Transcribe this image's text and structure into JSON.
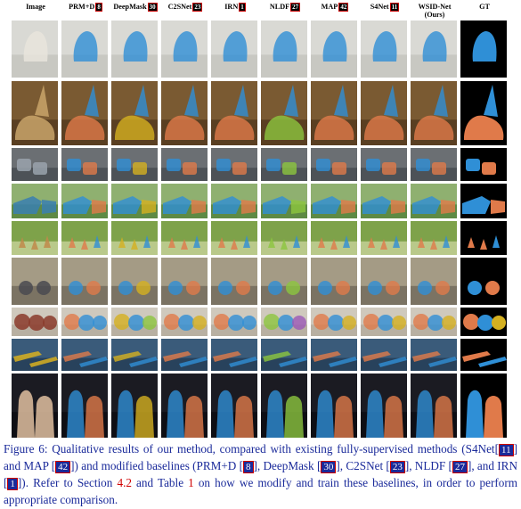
{
  "columns": [
    {
      "name": "Image",
      "ref": ""
    },
    {
      "name": "PRM+D",
      "ref": "8"
    },
    {
      "name": "DeepMask",
      "ref": "30"
    },
    {
      "name": "C2SNet",
      "ref": "23"
    },
    {
      "name": "IRN",
      "ref": "1"
    },
    {
      "name": "NLDF",
      "ref": "27"
    },
    {
      "name": "MAP",
      "ref": "42"
    },
    {
      "name": "S4Net",
      "ref": "11"
    },
    {
      "name": "WSID-Net",
      "ref": "",
      "sub": "(Ours)"
    },
    {
      "name": "GT",
      "ref": ""
    }
  ],
  "rows": [
    {
      "scene": "puppy"
    },
    {
      "scene": "cat-hat"
    },
    {
      "scene": "cars"
    },
    {
      "scene": "tractor"
    },
    {
      "scene": "deer"
    },
    {
      "scene": "bikes"
    },
    {
      "scene": "bags"
    },
    {
      "scene": "kayaks"
    },
    {
      "scene": "people"
    }
  ],
  "colors": {
    "blue": "#2f8fd6",
    "orange": "#e07a4a",
    "yellow": "#d4b020",
    "green": "#8cc63f",
    "purple": "#9b59b6",
    "gt_bg": "#000000"
  },
  "caption": {
    "figure_label": "Figure 6:",
    "text_1": "Qualitative results of our method, compared with existing fully-supervised methods (S4Net[",
    "ref_s4net": "11",
    "text_2": "] and MAP [",
    "ref_map": "42",
    "text_3": "]) and modified baselines (PRM+D [",
    "ref_prmd": "8",
    "text_4": "], DeepMask [",
    "ref_deepmask": "30",
    "text_5": "], C2SNet [",
    "ref_c2snet": "23",
    "text_6": "], NLDF [",
    "ref_nldf": "27",
    "text_7": "], and IRN [",
    "ref_irn": "1",
    "text_8": "]). Refer to Section ",
    "section": "4.2",
    "text_9": " and Table ",
    "table": "1",
    "text_10": " on how we modify and train these baselines, in order to perform appropriate comparison."
  }
}
